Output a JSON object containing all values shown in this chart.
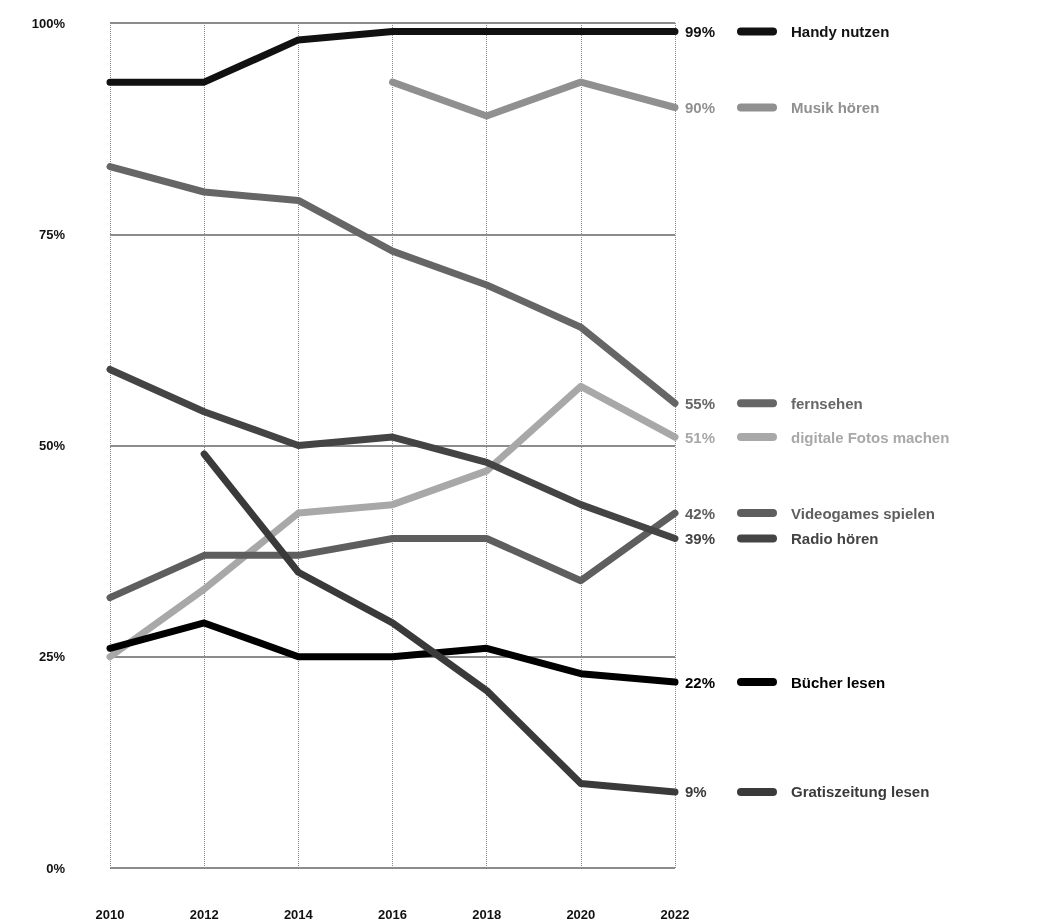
{
  "chart_data": {
    "type": "line",
    "categories": [
      "2010",
      "2012",
      "2014",
      "2016",
      "2018",
      "2020",
      "2022"
    ],
    "ylim": [
      0,
      100
    ],
    "yticks": [
      {
        "value": 0,
        "label": "0%"
      },
      {
        "value": 25,
        "label": "25%"
      },
      {
        "value": 50,
        "label": "50%"
      },
      {
        "value": 75,
        "label": "75%"
      },
      {
        "value": 100,
        "label": "100%"
      }
    ],
    "grid": true,
    "legend": "right",
    "marker": "none",
    "line_style": "solid",
    "series": [
      {
        "name": "Handy nutzen",
        "color": "#111111",
        "values": [
          93,
          93,
          98,
          99,
          99,
          99,
          99
        ],
        "value_labels": [
          null,
          null,
          null,
          null,
          null,
          null,
          "99%"
        ]
      },
      {
        "name": "Musik hören",
        "color": "#909090",
        "values": [
          null,
          null,
          null,
          93,
          89,
          93,
          90
        ],
        "value_labels": [
          null,
          null,
          null,
          null,
          null,
          null,
          "90%"
        ]
      },
      {
        "name": "fernsehen",
        "color": "#666666",
        "values": [
          83,
          80,
          79,
          73,
          69,
          64,
          55
        ],
        "value_labels": [
          null,
          null,
          null,
          null,
          null,
          null,
          "55%"
        ]
      },
      {
        "name": "digitale Fotos machen",
        "color": "#a8a8a8",
        "values": [
          25,
          33,
          42,
          43,
          47,
          57,
          51
        ],
        "value_labels": [
          null,
          null,
          null,
          null,
          null,
          null,
          "51%"
        ]
      },
      {
        "name": "Videogames spielen",
        "color": "#5e5e5e",
        "values": [
          32,
          37,
          37,
          39,
          39,
          34,
          42
        ],
        "value_labels": [
          null,
          null,
          null,
          null,
          null,
          null,
          "42%"
        ]
      },
      {
        "name": "Radio hören",
        "color": "#444444",
        "values": [
          59,
          54,
          50,
          51,
          48,
          43,
          39
        ],
        "value_labels": [
          null,
          null,
          null,
          null,
          null,
          null,
          "39%"
        ]
      },
      {
        "name": "Bücher lesen",
        "color": "#000000",
        "values": [
          26,
          29,
          25,
          25,
          26,
          23,
          22
        ],
        "value_labels": [
          null,
          null,
          null,
          null,
          null,
          null,
          "22%"
        ]
      },
      {
        "name": "Gratiszeitung lesen",
        "color": "#3a3a3a",
        "values": [
          null,
          49,
          35,
          29,
          21,
          10,
          9
        ],
        "value_labels": [
          null,
          null,
          null,
          null,
          null,
          null,
          "9%"
        ]
      }
    ]
  }
}
